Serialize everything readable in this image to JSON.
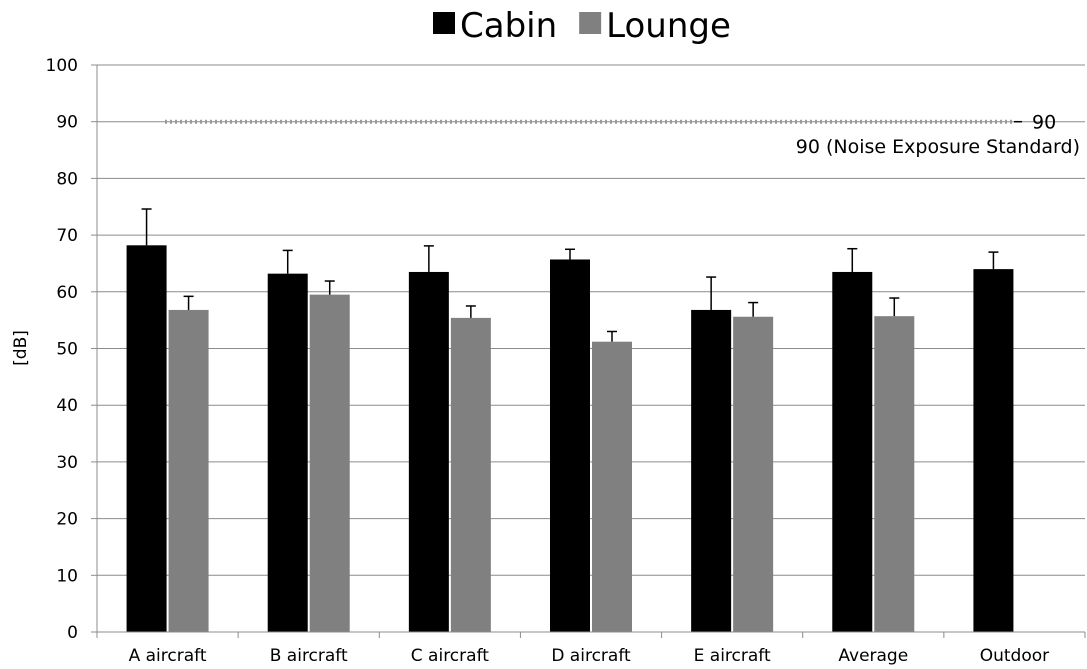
{
  "chart_data": {
    "type": "bar",
    "categories": [
      "A aircraft",
      "B aircraft",
      "C aircraft",
      "D aircraft",
      "E aircraft",
      "Average",
      "Outdoor"
    ],
    "series": [
      {
        "name": "Cabin",
        "color": "#000000",
        "values": [
          68.2,
          63.2,
          63.5,
          65.7,
          56.8,
          63.5,
          64.0
        ],
        "errors": [
          6.4,
          4.1,
          4.6,
          1.8,
          5.8,
          4.1,
          3.0
        ]
      },
      {
        "name": "Lounge",
        "color": "#808080",
        "values": [
          56.8,
          59.5,
          55.4,
          51.2,
          55.6,
          55.7,
          null
        ],
        "errors": [
          2.4,
          2.4,
          2.1,
          1.8,
          2.5,
          3.2,
          null
        ]
      }
    ],
    "ylabel": "[dB]",
    "ylim": [
      0,
      100
    ],
    "yticks": [
      "0",
      "10",
      "20",
      "30",
      "40",
      "50",
      "60",
      "70",
      "80",
      "90",
      "100"
    ],
    "grid": true,
    "legend_position": "top-center",
    "reference_line": {
      "value": 90,
      "value_label": "90",
      "description": "90 (Noise Exposure Standard)"
    }
  }
}
